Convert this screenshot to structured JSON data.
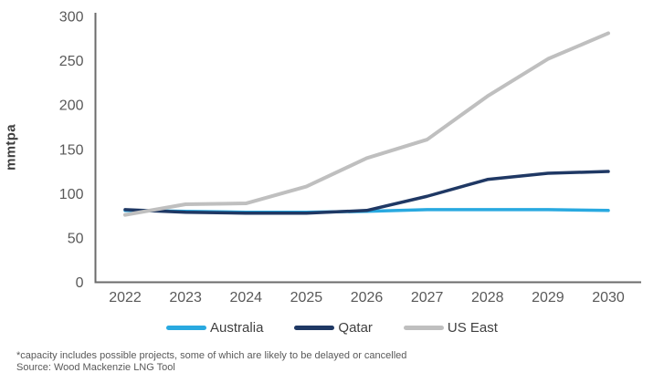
{
  "chart_data": {
    "type": "line",
    "title": "",
    "xlabel": "",
    "ylabel": "mmtpa",
    "x": [
      "2022",
      "2023",
      "2024",
      "2025",
      "2026",
      "2027",
      "2028",
      "2029",
      "2030"
    ],
    "series": [
      {
        "name": "Australia",
        "color": "#29A9E0",
        "values": [
          81,
          80,
          79,
          79,
          80,
          82,
          82,
          82,
          81
        ]
      },
      {
        "name": "Qatar",
        "color": "#1F3864",
        "values": [
          82,
          79,
          78,
          78,
          81,
          97,
          116,
          123,
          125
        ]
      },
      {
        "name": "US East",
        "color": "#BFBFBF",
        "values": [
          76,
          88,
          89,
          108,
          140,
          161,
          210,
          252,
          281
        ]
      }
    ],
    "ylim": [
      0,
      300
    ],
    "yticks": [
      0,
      50,
      100,
      150,
      200,
      250,
      300
    ],
    "grid": false,
    "legend_position": "bottom"
  },
  "axis_style": {
    "axis_color": "#6b6b6b",
    "tick_color": "#595959"
  },
  "footnotes": {
    "note": "*capacity includes possible projects, some of which are likely to be delayed or cancelled",
    "source": "Source: Wood Mackenzie LNG Tool"
  }
}
